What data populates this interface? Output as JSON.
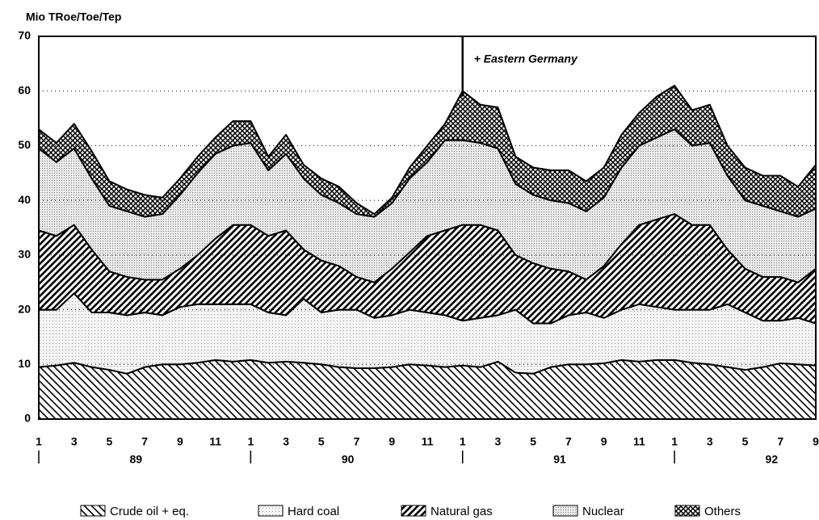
{
  "chart_data": {
    "type": "stacked_area",
    "y_label": "Mio TRoe/Toe/Tep",
    "categories": [
      "1",
      null,
      "3",
      null,
      "5",
      null,
      "7",
      null,
      "9",
      null,
      "11",
      null,
      "1",
      null,
      "3",
      null,
      "5",
      null,
      "7",
      null,
      "9",
      null,
      "11",
      null,
      "1",
      null,
      "3",
      null,
      "5",
      null,
      "7",
      null,
      "9",
      null,
      "11",
      null,
      "1",
      null,
      "3",
      null,
      "5",
      null,
      "7",
      null,
      "9"
    ],
    "years": [
      "89",
      "90",
      "91",
      "92"
    ],
    "ylim": [
      0,
      70
    ],
    "yticks": [
      0,
      10,
      20,
      30,
      40,
      50,
      60,
      70
    ],
    "grid": true,
    "annotation": {
      "text": "+ Eastern Germany",
      "at": 24
    },
    "series": [
      {
        "name": "Crude oil + eq.",
        "values": [
          9.5,
          9.8,
          10.3,
          9.5,
          9,
          8.3,
          9.5,
          10,
          10,
          10.3,
          10.8,
          10.5,
          10.8,
          10.3,
          10.5,
          10.3,
          10,
          9.5,
          9.3,
          9.3,
          9.5,
          10,
          9.8,
          9.5,
          9.8,
          9.5,
          10.5,
          8.5,
          8.3,
          9.5,
          10,
          10,
          10.2,
          10.8,
          10.5,
          10.8,
          10.8,
          10.3,
          10,
          9.5,
          9,
          9.5,
          10.2,
          10,
          9.8
        ]
      },
      {
        "name": "Hard coal",
        "values": [
          10.5,
          10.2,
          12.7,
          10,
          10.5,
          10.7,
          10,
          9,
          10.5,
          10.7,
          10.2,
          10.5,
          10.2,
          9.2,
          8.5,
          11.7,
          9.5,
          10.5,
          10.7,
          9.2,
          9.5,
          10,
          9.7,
          9.5,
          8.2,
          9,
          8.5,
          11.5,
          9.2,
          8,
          9,
          9.5,
          8.3,
          9.2,
          10.5,
          9.7,
          9.2,
          9.7,
          10,
          11.5,
          10.5,
          8.5,
          7.8,
          8.5,
          7.7
        ]
      },
      {
        "name": "Natural gas",
        "values": [
          14.5,
          13.5,
          12.5,
          11.5,
          7.5,
          7,
          6,
          6.5,
          7,
          9,
          12,
          14.5,
          14.5,
          14,
          15.5,
          9,
          9.5,
          8,
          6,
          6.5,
          8.5,
          10.5,
          14,
          15.5,
          17.5,
          17,
          15.5,
          10,
          11,
          10,
          8,
          6,
          9.5,
          12,
          14.5,
          16,
          17.5,
          15.5,
          15.5,
          10,
          8,
          8,
          8,
          6.5,
          10
        ]
      },
      {
        "name": "Nuclear",
        "values": [
          15,
          13.5,
          14,
          13,
          12,
          12,
          11.5,
          12,
          13.5,
          15,
          15.5,
          14.5,
          15,
          12,
          14,
          13,
          12,
          11.5,
          11.5,
          12,
          12,
          13.5,
          13.5,
          16.5,
          15.5,
          15,
          15,
          13,
          12.5,
          12.5,
          12.5,
          12.5,
          12.5,
          14,
          14.5,
          15,
          15.5,
          14.5,
          15,
          13.5,
          12.5,
          13,
          12,
          12,
          11
        ]
      },
      {
        "name": "Others",
        "values": [
          3.5,
          3.5,
          4.5,
          5,
          4.5,
          4,
          4,
          3,
          3,
          3,
          3,
          4.5,
          4,
          2.5,
          3.5,
          2.5,
          3,
          3,
          2,
          0.5,
          1,
          2,
          3,
          3,
          9,
          7,
          7.5,
          5,
          5,
          5.5,
          6,
          5.5,
          5.5,
          6,
          6,
          7.5,
          8,
          6.5,
          7,
          5.5,
          6,
          5.5,
          6.5,
          5.5,
          8
        ]
      }
    ]
  }
}
